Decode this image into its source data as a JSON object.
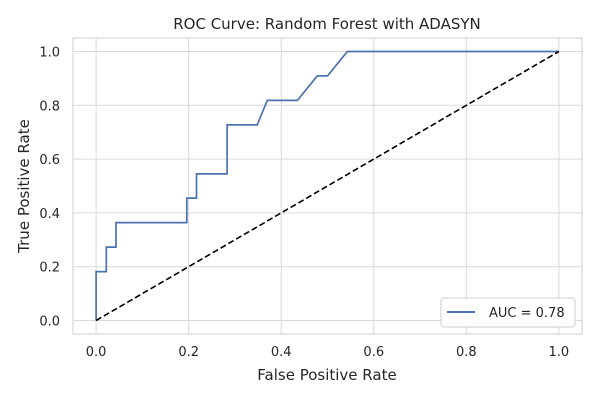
{
  "chart_data": {
    "type": "line",
    "title": "ROC Curve: Random Forest with ADASYN",
    "xlabel": "False Positive Rate",
    "ylabel": "True Positive Rate",
    "xlim": [
      -0.05,
      1.05
    ],
    "ylim": [
      -0.05,
      1.05
    ],
    "xticks": [
      0.0,
      0.2,
      0.4,
      0.6,
      0.8,
      1.0
    ],
    "xtick_labels": [
      "0.0",
      "0.2",
      "0.4",
      "0.6",
      "0.8",
      "1.0"
    ],
    "yticks": [
      0.0,
      0.2,
      0.4,
      0.6,
      0.8,
      1.0
    ],
    "ytick_labels": [
      "0.0",
      "0.2",
      "0.4",
      "0.6",
      "0.8",
      "1.0"
    ],
    "grid": true,
    "legend_position": "bottom-right",
    "series": [
      {
        "name": "AUC = 0.78",
        "color": "#4c72b0",
        "style": "solid",
        "x": [
          0.0,
          0.0,
          0.022,
          0.022,
          0.043,
          0.043,
          0.196,
          0.196,
          0.217,
          0.217,
          0.283,
          0.283,
          0.348,
          0.37,
          0.435,
          0.478,
          0.5,
          0.543,
          0.543,
          1.0
        ],
        "y": [
          0.0,
          0.182,
          0.182,
          0.273,
          0.273,
          0.364,
          0.364,
          0.455,
          0.455,
          0.545,
          0.545,
          0.727,
          0.727,
          0.818,
          0.818,
          0.909,
          0.909,
          1.0,
          1.0,
          1.0
        ]
      },
      {
        "color": "#000000",
        "style": "dashed",
        "x": [
          0.0,
          1.0
        ],
        "y": [
          0.0,
          1.0
        ]
      }
    ]
  }
}
